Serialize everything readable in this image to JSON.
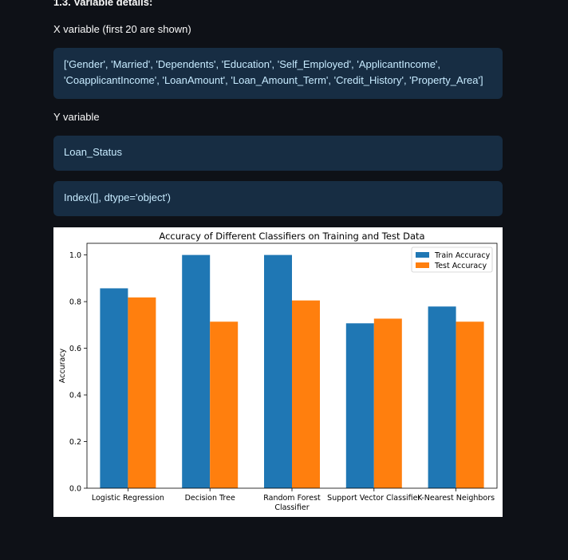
{
  "section": {
    "title": "1.3. Variable details:",
    "x_label": "X variable (first 20 are shown)",
    "x_value_lines": [
      "['Gender', 'Married', 'Dependents', 'Education', 'Self_Employed', 'ApplicantIncome',",
      "'CoapplicantIncome', 'LoanAmount', 'Loan_Amount_Term', 'Credit_History', 'Property_Area']"
    ],
    "y_label": "Y variable",
    "y_value": "Loan_Status",
    "index_value": "Index([], dtype='object')"
  },
  "chart_data": {
    "type": "bar",
    "title": "Accuracy of Different Classifiers on Training and Test Data",
    "xlabel": "",
    "ylabel": "Accuracy",
    "ylim": [
      0,
      1.05
    ],
    "yticks": [
      "0.0",
      "0.2",
      "0.4",
      "0.6",
      "0.8",
      "1.0"
    ],
    "categories": [
      "Logistic Regression",
      "Decision Tree",
      "Random Forest\nClassifier",
      "Support Vector Classifier",
      "K-Nearest Neighbors"
    ],
    "series": [
      {
        "name": "Train Accuracy",
        "color": "#1f77b4",
        "values": [
          0.857,
          1.0,
          1.0,
          0.707,
          0.779
        ]
      },
      {
        "name": "Test Accuracy",
        "color": "#ff7f0e",
        "values": [
          0.818,
          0.714,
          0.805,
          0.727,
          0.714
        ]
      }
    ],
    "legend": "top-right",
    "grid": false
  }
}
